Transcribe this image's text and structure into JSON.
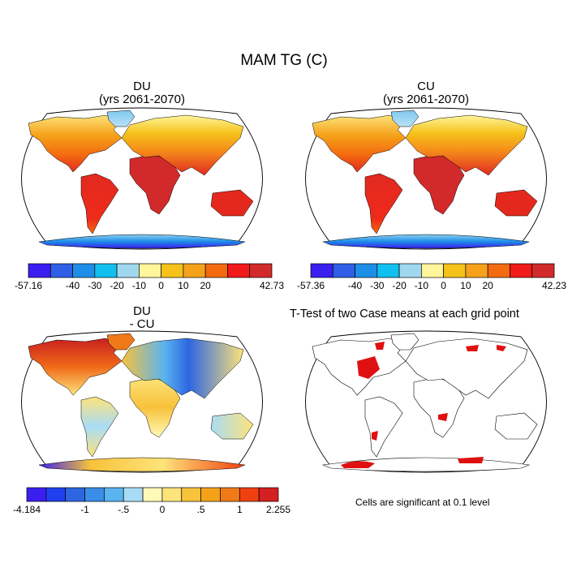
{
  "title": "MAM TG (C)",
  "panels": [
    {
      "title_line1": "DU",
      "title_line2": "(yrs 2061-2070)",
      "colorbar": {
        "colors": [
          "#3a1ff0",
          "#2f5fe6",
          "#1e8fe8",
          "#10c0f0",
          "#a0d8f0",
          "#fff59a",
          "#f5c21a",
          "#f5a21a",
          "#f46a10",
          "#f01a1a",
          "#d22a2a"
        ],
        "labels": [
          "-57.16",
          "-40",
          "-30",
          "-20",
          "-10",
          "0",
          "10",
          "20",
          "42.73"
        ],
        "label_boxes": [
          0,
          2,
          3,
          4,
          5,
          6,
          7,
          8,
          11
        ]
      }
    },
    {
      "title_line1": "CU",
      "title_line2": "(yrs 2061-2070)",
      "colorbar": {
        "colors": [
          "#3a1ff0",
          "#2f5fe6",
          "#1e8fe8",
          "#10c0f0",
          "#a0d8f0",
          "#fff59a",
          "#f5c21a",
          "#f5a21a",
          "#f46a10",
          "#f01a1a",
          "#d22a2a"
        ],
        "labels": [
          "-57.36",
          "-40",
          "-30",
          "-20",
          "-10",
          "0",
          "10",
          "20",
          "42.23"
        ],
        "label_boxes": [
          0,
          2,
          3,
          4,
          5,
          6,
          7,
          8,
          11
        ]
      }
    },
    {
      "title_line1": "DU",
      "title_line2": "- CU",
      "colorbar": {
        "colors": [
          "#3a1ff0",
          "#2040ee",
          "#2e66e2",
          "#3a8ee8",
          "#5ab4f0",
          "#a8dcf6",
          "#fff9b8",
          "#fde37a",
          "#f8c23a",
          "#f5a21a",
          "#f07a18",
          "#f04010",
          "#d42020"
        ],
        "labels": [
          "-4.184",
          "-1",
          "-.5",
          "0",
          ".5",
          "1",
          "2.255"
        ],
        "label_boxes": [
          0,
          3,
          5,
          7,
          9,
          11,
          13
        ]
      }
    },
    {
      "title": "T-Test of two Case means at each grid point",
      "footnote": "Cells are significant at 0.1 level"
    }
  ]
}
